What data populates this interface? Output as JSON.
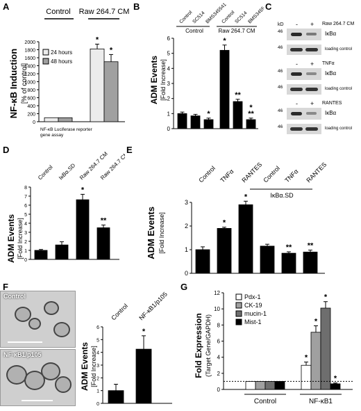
{
  "panels": {
    "A": {
      "letter": "A",
      "ylabel": "NF-κB Induction",
      "ylabel2": "[% of control]",
      "group_control": "Control",
      "group_raw": "Raw 264.7 CM",
      "legend_24": "24 hours",
      "legend_48": "48 hours",
      "note_line1": "NF-κB Luciferase reporter",
      "note_line2": "gene assay",
      "yticks": [
        "0",
        "200",
        "400",
        "600",
        "800",
        "1000",
        "1200",
        "1400",
        "1600",
        "1800",
        "2000"
      ]
    },
    "B": {
      "letter": "B",
      "ylabel": "ADM Events",
      "ylabel2": "[Fold Increase]",
      "top_labels": [
        "Control",
        "SC514",
        "BMS345541",
        "Control",
        "SC514",
        "BMS345541"
      ],
      "group_control": "Control",
      "group_raw": "Raw 264.7 CM",
      "yticks": [
        "0",
        "1",
        "2",
        "3",
        "4",
        "5",
        "6"
      ]
    },
    "C": {
      "letter": "C",
      "kd": "kD",
      "marker": "46",
      "signs": [
        "-",
        "+"
      ],
      "blots": [
        {
          "treatment": "Raw 264.7 CM",
          "target": "IκBα",
          "loading": "loading control"
        },
        {
          "treatment": "TNFα",
          "target": "IκBα",
          "loading": "loading control"
        },
        {
          "treatment": "RANTES",
          "target": "IκBα",
          "loading": "loading control"
        }
      ]
    },
    "D": {
      "letter": "D",
      "ylabel": "ADM Events",
      "ylabel2": "[Fold Increase]",
      "top_labels": [
        "Control",
        "IκBα.SD",
        "Raw 264.7 CM",
        "Raw 264.7 CM + IκBα.SD"
      ],
      "yticks": [
        "0",
        "1",
        "2",
        "3",
        "4",
        "5",
        "6",
        "7",
        "8"
      ]
    },
    "E": {
      "letter": "E",
      "ylabel": "ADM Events",
      "ylabel2": "[Fold Increase]",
      "top_labels": [
        "Control",
        "TNFα",
        "RANTES",
        "Control",
        "TNFα",
        "RANTES"
      ],
      "group_label": "IκBα.SD",
      "yticks": [
        "0",
        "1",
        "2",
        "3"
      ]
    },
    "F": {
      "letter": "F",
      "img_control": "Control",
      "img_nfkb": "NF-κB1/p105",
      "ylabel": "ADM Events",
      "ylabel2": "[Fold Increase]",
      "top_labels": [
        "Control",
        "NF-κB1/p105"
      ],
      "yticks": [
        "0",
        "1",
        "2",
        "3",
        "4",
        "5",
        "6"
      ]
    },
    "G": {
      "letter": "G",
      "ylabel": "Fold Expression",
      "ylabel2": "(Target Gene/GAPDH)",
      "legend": [
        "Pdx-1",
        "CK-19",
        "mucin-1",
        "Mist-1"
      ],
      "groups": [
        "Control",
        "NF-κB1"
      ],
      "yticks": [
        "0",
        "2",
        "4",
        "6",
        "8",
        "10",
        "12"
      ]
    }
  },
  "chart_data": [
    {
      "panel": "A",
      "type": "bar",
      "categories": [
        "Control",
        "Raw 264.7 CM"
      ],
      "series": [
        {
          "name": "24 hours",
          "values": [
            100,
            1820
          ],
          "errors": [
            0,
            120
          ]
        },
        {
          "name": "48 hours",
          "values": [
            100,
            1500
          ],
          "errors": [
            0,
            180
          ]
        }
      ],
      "significance": [
        "",
        "*"
      ],
      "ylabel": "NF-κB Induction [% of control]",
      "ylim": [
        0,
        2000
      ]
    },
    {
      "panel": "B",
      "type": "bar",
      "categories": [
        "Control",
        "SC514",
        "BMS345541",
        "Control",
        "SC514",
        "BMS345541"
      ],
      "values": [
        1.0,
        0.85,
        0.6,
        5.2,
        1.8,
        0.6
      ],
      "errors": [
        0.1,
        0.1,
        0.1,
        0.35,
        0.15,
        0.1
      ],
      "significance": [
        "",
        "",
        "*",
        "*",
        "**",
        "*\n**"
      ],
      "ylabel": "ADM Events [Fold Increase]",
      "ylim": [
        0,
        6
      ]
    },
    {
      "panel": "D",
      "type": "bar",
      "categories": [
        "Control",
        "IκBα.SD",
        "Raw 264.7 CM",
        "Raw 264.7 CM + IκBα.SD"
      ],
      "values": [
        1.0,
        1.6,
        6.6,
        3.5
      ],
      "errors": [
        0.1,
        0.35,
        0.6,
        0.3
      ],
      "significance": [
        "",
        "",
        "*",
        "**"
      ],
      "ylabel": "ADM Events [Fold Increase]",
      "ylim": [
        0,
        8
      ]
    },
    {
      "panel": "E",
      "type": "bar",
      "categories": [
        "Control",
        "TNFα",
        "RANTES",
        "Control",
        "TNFα",
        "RANTES"
      ],
      "values": [
        1.0,
        1.9,
        2.9,
        1.15,
        0.85,
        0.9
      ],
      "errors": [
        0.12,
        0.05,
        0.15,
        0.08,
        0.06,
        0.08
      ],
      "significance": [
        "",
        "*",
        "*",
        "",
        "**",
        "**"
      ],
      "ylabel": "ADM Events [Fold Increase]",
      "ylim": [
        0,
        3
      ]
    },
    {
      "panel": "F",
      "type": "bar",
      "categories": [
        "Control",
        "NF-κB1/p105"
      ],
      "values": [
        1.0,
        4.25
      ],
      "errors": [
        0.5,
        1.05
      ],
      "significance": [
        "",
        "*"
      ],
      "ylabel": "ADM Events [Fold Increase]",
      "ylim": [
        0,
        6
      ]
    },
    {
      "panel": "G",
      "type": "bar",
      "categories": [
        "Control",
        "NF-κB1"
      ],
      "series": [
        {
          "name": "Pdx-1",
          "values": [
            1.0,
            3.0
          ],
          "errors": [
            0,
            0.4
          ]
        },
        {
          "name": "CK-19",
          "values": [
            1.0,
            7.1
          ],
          "errors": [
            0,
            0.8
          ]
        },
        {
          "name": "mucin-1",
          "values": [
            1.0,
            10.1
          ],
          "errors": [
            0,
            0.8
          ]
        },
        {
          "name": "Mist-1",
          "values": [
            1.0,
            0.7
          ],
          "errors": [
            0,
            0.1
          ]
        }
      ],
      "significance": [
        "",
        "* * * *"
      ],
      "reference_line": 1,
      "ylabel": "Fold Expression (Target Gene/GAPDH)",
      "ylim": [
        0,
        12
      ]
    }
  ],
  "colors": {
    "bar_black": "#000000",
    "bar_light": "#ececec",
    "bar_gray": "#a0a0a0",
    "bar_white": "#ffffff",
    "bar_dark": "#6e6e6e",
    "blot_band": "#2a2a2a"
  }
}
